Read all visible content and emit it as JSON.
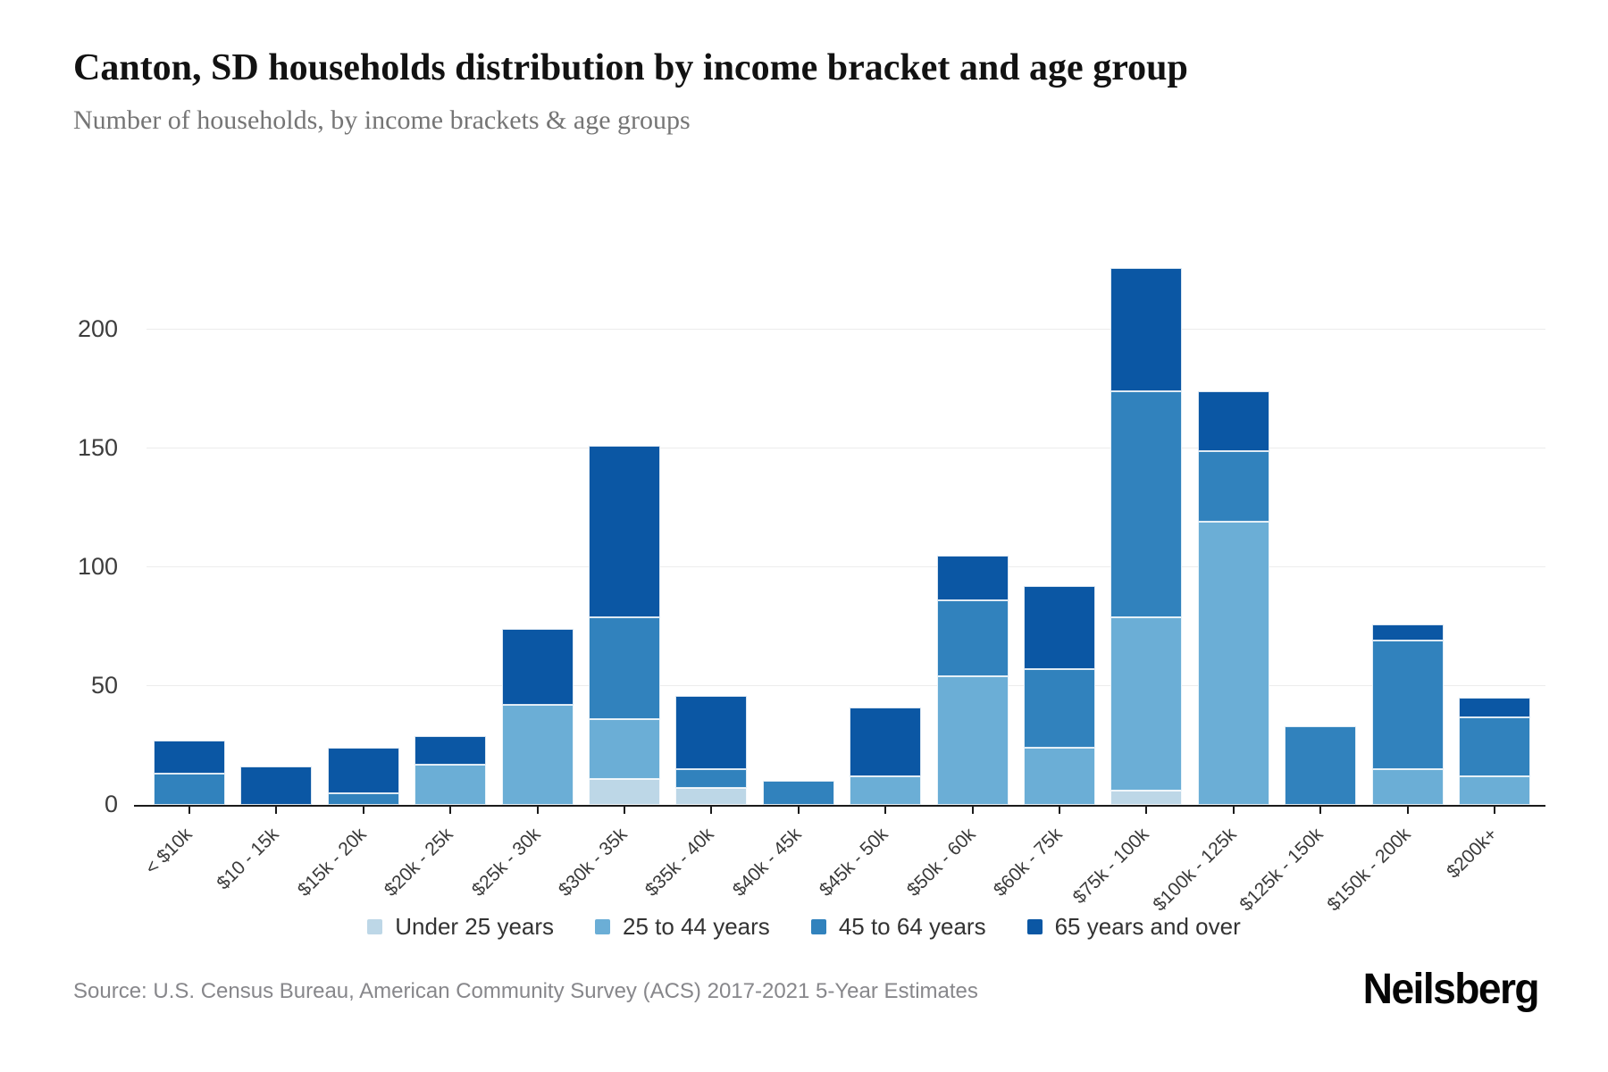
{
  "header": {
    "title": "Canton, SD households distribution by income bracket and age group",
    "subtitle": "Number of households, by income brackets & age groups"
  },
  "footer": {
    "source": "Source: U.S. Census Bureau, American Community Survey (ACS) 2017-2021 5-Year Estimates",
    "logo": "Neilsberg"
  },
  "chart_data": {
    "type": "bar",
    "stacked": true,
    "title": "Canton, SD households distribution by income bracket and age group",
    "subtitle": "Number of households, by income brackets & age groups",
    "xlabel": "",
    "ylabel": "",
    "ylim": [
      0,
      225
    ],
    "yticks": [
      0,
      50,
      100,
      150,
      200
    ],
    "grid": true,
    "legend_position": "bottom-center",
    "categories": [
      "< $10k",
      "$10 - 15k",
      "$15k - 20k",
      "$20k - 25k",
      "$25k - 30k",
      "$30k - 35k",
      "$35k - 40k",
      "$40k - 45k",
      "$45k - 50k",
      "$50k - 60k",
      "$60k - 75k",
      "$75k - 100k",
      "$100k - 125k",
      "$125k - 150k",
      "$150k - 200k",
      "$200k+"
    ],
    "series": [
      {
        "name": "Under 25 years",
        "color": "#bdd7e7",
        "values": [
          0,
          0,
          0,
          0,
          0,
          11,
          7,
          0,
          0,
          0,
          0,
          6,
          0,
          0,
          0,
          0
        ]
      },
      {
        "name": "25 to 44 years",
        "color": "#6baed6",
        "values": [
          0,
          0,
          0,
          17,
          42,
          25,
          0,
          0,
          12,
          54,
          24,
          73,
          119,
          0,
          15,
          12
        ]
      },
      {
        "name": "45 to 64 years",
        "color": "#3182bd",
        "values": [
          13,
          0,
          5,
          0,
          0,
          43,
          8,
          10,
          0,
          32,
          33,
          95,
          30,
          33,
          54,
          25
        ]
      },
      {
        "name": "65 years and over",
        "color": "#0b57a4",
        "values": [
          14,
          16,
          19,
          12,
          32,
          72,
          31,
          0,
          29,
          19,
          35,
          52,
          25,
          0,
          7,
          8
        ]
      }
    ],
    "totals": [
      27,
      16,
      24,
      29,
      74,
      151,
      46,
      10,
      41,
      105,
      92,
      226,
      174,
      33,
      76,
      45
    ]
  }
}
